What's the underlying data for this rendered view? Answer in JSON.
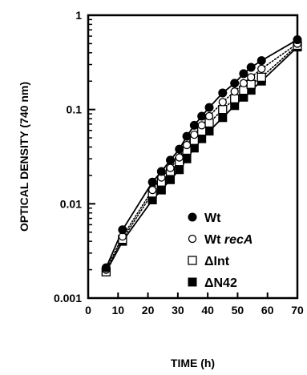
{
  "chart_data": {
    "type": "line",
    "title": "",
    "xlabel": "TIME (h)",
    "ylabel": "OPTICAL DENSITY (740 nm)",
    "xlim": [
      0,
      70
    ],
    "ylim": [
      0.001,
      1
    ],
    "yscale": "log",
    "x_ticks": [
      0,
      10,
      20,
      30,
      40,
      50,
      60,
      70
    ],
    "y_ticks": [
      {
        "value": 0.001,
        "label": "0.001"
      },
      {
        "value": 0.01,
        "label": "0.01"
      },
      {
        "value": 0.1,
        "label": "0.1"
      },
      {
        "value": 1,
        "label": "1"
      }
    ],
    "grid": false,
    "legend_position": "bottom-right",
    "series": [
      {
        "name": "Wt",
        "legend_parts": [
          {
            "text": "Wt",
            "italic": false
          }
        ],
        "marker": "filled-circle",
        "line": "solid",
        "x": [
          6,
          11.5,
          21.5,
          24.5,
          27.5,
          30.5,
          33,
          35.5,
          38,
          40.5,
          45,
          49,
          52,
          54.5,
          58,
          70
        ],
        "y": [
          0.0021,
          0.0053,
          0.017,
          0.022,
          0.029,
          0.038,
          0.052,
          0.068,
          0.085,
          0.105,
          0.15,
          0.19,
          0.24,
          0.28,
          0.33,
          0.55
        ]
      },
      {
        "name": "Wt recA",
        "legend_parts": [
          {
            "text": "Wt ",
            "italic": false
          },
          {
            "text": "recA",
            "italic": true
          }
        ],
        "marker": "open-circle",
        "line": "dotted",
        "x": [
          6,
          11.5,
          21.5,
          24.5,
          27.5,
          30.5,
          33,
          35.5,
          38,
          40.5,
          45,
          49,
          52,
          54.5,
          58,
          70
        ],
        "y": [
          0.002,
          0.0045,
          0.014,
          0.019,
          0.024,
          0.031,
          0.042,
          0.054,
          0.068,
          0.085,
          0.12,
          0.155,
          0.19,
          0.22,
          0.27,
          0.5
        ]
      },
      {
        "name": "ΔInt",
        "legend_parts": [
          {
            "text": "ΔInt",
            "italic": false
          }
        ],
        "marker": "open-square",
        "line": "dotted",
        "x": [
          6,
          11.5,
          21.5,
          24.5,
          27.5,
          30.5,
          33,
          35.5,
          38,
          40.5,
          45,
          49,
          52,
          54.5,
          58,
          70
        ],
        "y": [
          0.0019,
          0.0042,
          0.013,
          0.017,
          0.022,
          0.028,
          0.037,
          0.047,
          0.059,
          0.072,
          0.1,
          0.13,
          0.16,
          0.185,
          0.22,
          0.48
        ]
      },
      {
        "name": "ΔN42",
        "legend_parts": [
          {
            "text": "ΔN42",
            "italic": false
          }
        ],
        "marker": "filled-square",
        "line": "solid",
        "x": [
          6,
          11.5,
          21.5,
          24.5,
          27.5,
          30.5,
          33,
          35.5,
          38,
          40.5,
          45,
          49,
          52,
          54.5,
          58,
          70
        ],
        "y": [
          0.0019,
          0.004,
          0.011,
          0.014,
          0.018,
          0.023,
          0.03,
          0.039,
          0.049,
          0.059,
          0.082,
          0.11,
          0.135,
          0.16,
          0.2,
          0.46
        ]
      }
    ]
  }
}
